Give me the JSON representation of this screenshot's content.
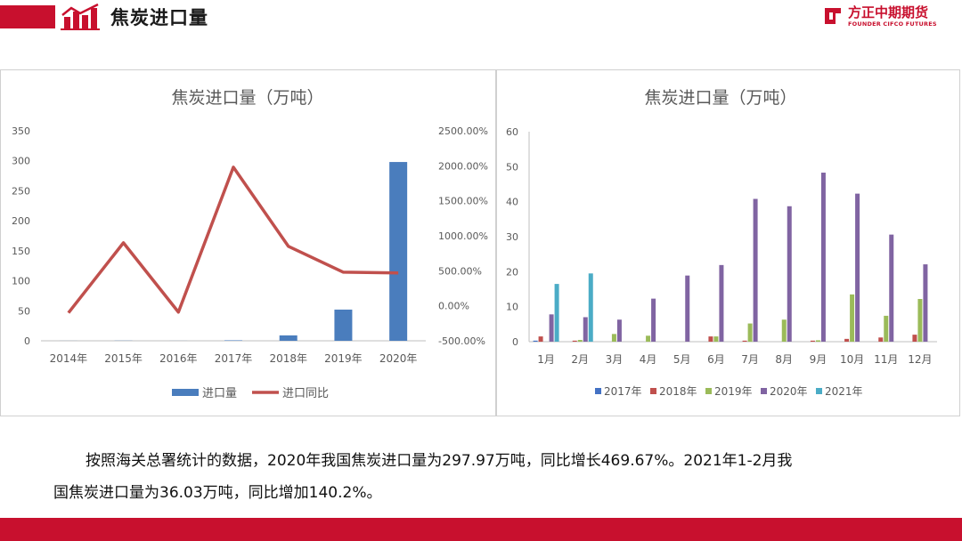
{
  "header": {
    "title": "焦炭进口量"
  },
  "logo": {
    "cn": "方正中期期货",
    "en": "FOUNDER CIFCO FUTURES"
  },
  "colors": {
    "brand_red": "#c8102e",
    "bar_blue": "#4a7dbd",
    "line_red": "#c0504d",
    "y2017": "#4472c4",
    "y2018": "#c0504d",
    "y2019": "#9bbb59",
    "y2020": "#8064a2",
    "y2021": "#4bacc6"
  },
  "description": {
    "line1": "按照海关总署统计的数据，2020年我国焦炭进口量为297.97万吨，同比增长469.67%。2021年1-2月我",
    "line2": "国焦炭进口量为36.03万吨，同比增加140.2%。"
  },
  "chart_data": [
    {
      "type": "bar",
      "title": "焦炭进口量（万吨）",
      "categories": [
        "2014年",
        "2015年",
        "2016年",
        "2017年",
        "2018年",
        "2019年",
        "2020年"
      ],
      "series": [
        {
          "name": "进口量",
          "type": "bar",
          "axis": "left",
          "values": [
            0.1,
            0.3,
            0.1,
            0.8,
            9,
            52,
            298
          ]
        },
        {
          "name": "进口同比",
          "type": "line",
          "axis": "right",
          "values": [
            -100,
            900,
            -90,
            1980,
            850,
            480,
            470
          ]
        }
      ],
      "ylim": [
        0,
        350
      ],
      "yticks": [
        "350",
        "300",
        "250",
        "200",
        "150",
        "100",
        "50",
        "0"
      ],
      "y2lim": [
        -500,
        2500
      ],
      "y2ticks": [
        "2500.00%",
        "2000.00%",
        "1500.00%",
        "1000.00%",
        "500.00%",
        "0.00%",
        "-500.00%"
      ],
      "legend": "bottom"
    },
    {
      "type": "bar",
      "title": "焦炭进口量（万吨）",
      "categories": [
        "1月",
        "2月",
        "3月",
        "4月",
        "5月",
        "6月",
        "7月",
        "8月",
        "9月",
        "10月",
        "11月",
        "12月"
      ],
      "series": [
        {
          "name": "2017年",
          "values": [
            0.3,
            0,
            0,
            0,
            0,
            0,
            0,
            0,
            0,
            0,
            0,
            0
          ]
        },
        {
          "name": "2018年",
          "values": [
            1.5,
            0.3,
            0,
            0,
            0,
            1.5,
            0.3,
            0,
            0.3,
            0.8,
            1.2,
            2.0
          ]
        },
        {
          "name": "2019年",
          "values": [
            0,
            0.5,
            2.2,
            1.7,
            0,
            1.5,
            5.2,
            6.3,
            0.4,
            13.5,
            7.4,
            12.2
          ]
        },
        {
          "name": "2020年",
          "values": [
            7.8,
            7.0,
            6.3,
            12.3,
            18.9,
            21.9,
            40.8,
            38.7,
            48.3,
            42.3,
            30.6,
            22.1
          ]
        },
        {
          "name": "2021年",
          "values": [
            16.5,
            19.5,
            0,
            0,
            0,
            0,
            0,
            0,
            0,
            0,
            0,
            0
          ]
        }
      ],
      "ylim": [
        0,
        60
      ],
      "yticks": [
        "60",
        "50",
        "40",
        "30",
        "20",
        "10",
        "0"
      ],
      "legend": "bottom"
    }
  ]
}
